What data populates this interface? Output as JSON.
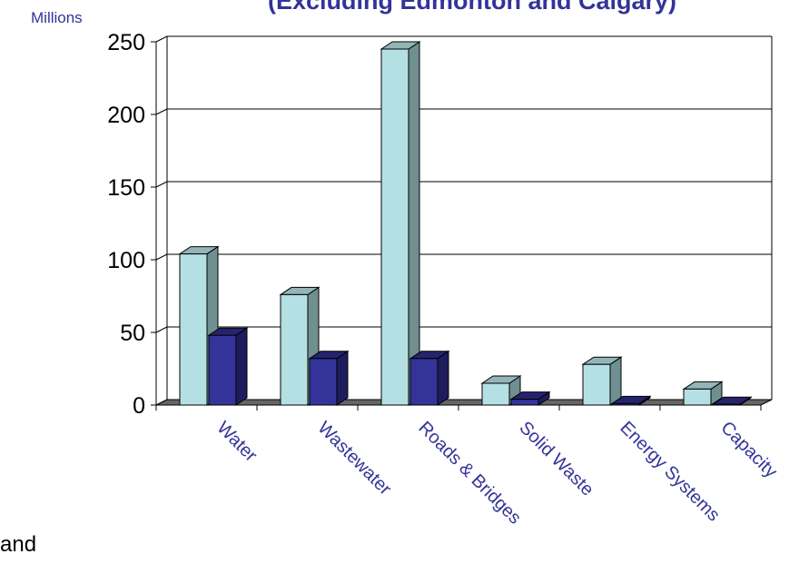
{
  "title_fragment": "(Excluding Edmonton and Calgary)",
  "unit_label": "Millions",
  "legend_fragment": "and",
  "colors": {
    "series1_front": "#b5e0e3",
    "series1_side": "#6f8f91",
    "series1_top": "#93b5b8",
    "series2_front": "#333399",
    "series2_side": "#1d1d5e",
    "series2_top": "#24246e",
    "floor": "#666666",
    "axis_text": "#333399"
  },
  "chart_data": {
    "type": "bar",
    "categories": [
      "Water",
      "Wastewater",
      "Roads & Bridges",
      "Solid Waste",
      "Energy Systems",
      "Capacity"
    ],
    "series": [
      {
        "values": [
          104,
          76,
          245,
          15,
          28,
          11
        ]
      },
      {
        "values": [
          48,
          32,
          32,
          4,
          1,
          0.5
        ]
      }
    ],
    "ylim": [
      0,
      250
    ],
    "yticks": [
      "0",
      "50",
      "100",
      "150",
      "200",
      "250"
    ],
    "grid": true,
    "three_d": true
  }
}
